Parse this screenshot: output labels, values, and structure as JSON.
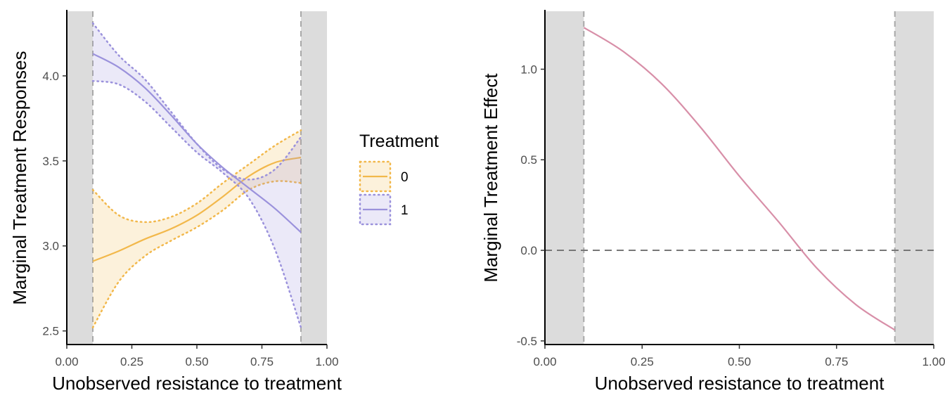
{
  "chart_data": [
    {
      "type": "line",
      "xlabel": "Unobserved resistance to treatment",
      "ylabel": "Marginal Treatment Responses",
      "xlim": [
        0,
        1
      ],
      "ylim": [
        2.42,
        4.38
      ],
      "xticks": [
        "0.00",
        "0.25",
        "0.50",
        "0.75",
        "1.00"
      ],
      "yticks": [
        "2.5",
        "3.0",
        "3.5",
        "4.0"
      ],
      "support_bounds": [
        0.1,
        0.9
      ],
      "legend_title": "Treatment",
      "legend_position": "right",
      "series": [
        {
          "name": "0",
          "color": "#f2b84b",
          "x": [
            0.1,
            0.2,
            0.3,
            0.4,
            0.5,
            0.6,
            0.7,
            0.8,
            0.9
          ],
          "y": [
            2.91,
            2.97,
            3.04,
            3.1,
            3.18,
            3.29,
            3.41,
            3.49,
            3.52
          ],
          "upper": [
            3.33,
            3.18,
            3.14,
            3.17,
            3.25,
            3.37,
            3.48,
            3.59,
            3.68
          ],
          "lower": [
            2.52,
            2.79,
            2.94,
            3.03,
            3.11,
            3.21,
            3.33,
            3.38,
            3.37
          ]
        },
        {
          "name": "1",
          "color": "#9b92dc",
          "x": [
            0.1,
            0.2,
            0.3,
            0.4,
            0.5,
            0.6,
            0.7,
            0.8,
            0.9
          ],
          "y": [
            4.13,
            4.05,
            3.93,
            3.77,
            3.6,
            3.46,
            3.34,
            3.22,
            3.08
          ],
          "upper": [
            4.31,
            4.12,
            3.98,
            3.79,
            3.6,
            3.45,
            3.39,
            3.45,
            3.64
          ],
          "lower": [
            3.97,
            3.95,
            3.85,
            3.7,
            3.55,
            3.43,
            3.28,
            2.98,
            2.52
          ]
        }
      ]
    },
    {
      "type": "line",
      "xlabel": "Unobserved resistance to treatment",
      "ylabel": "Marginal Treatment Effect",
      "xlim": [
        0,
        1
      ],
      "ylim": [
        -0.52,
        1.32
      ],
      "xticks": [
        "0.00",
        "0.25",
        "0.50",
        "0.75",
        "1.00"
      ],
      "yticks": [
        "-0.5",
        "0.0",
        "0.5",
        "1.0"
      ],
      "support_bounds": [
        0.1,
        0.9
      ],
      "hline": 0,
      "series": [
        {
          "color": "#d88fa8",
          "x": [
            0.1,
            0.2,
            0.3,
            0.4,
            0.5,
            0.6,
            0.7,
            0.8,
            0.9
          ],
          "y": [
            1.23,
            1.1,
            0.92,
            0.68,
            0.41,
            0.16,
            -0.1,
            -0.3,
            -0.44
          ]
        }
      ]
    }
  ]
}
